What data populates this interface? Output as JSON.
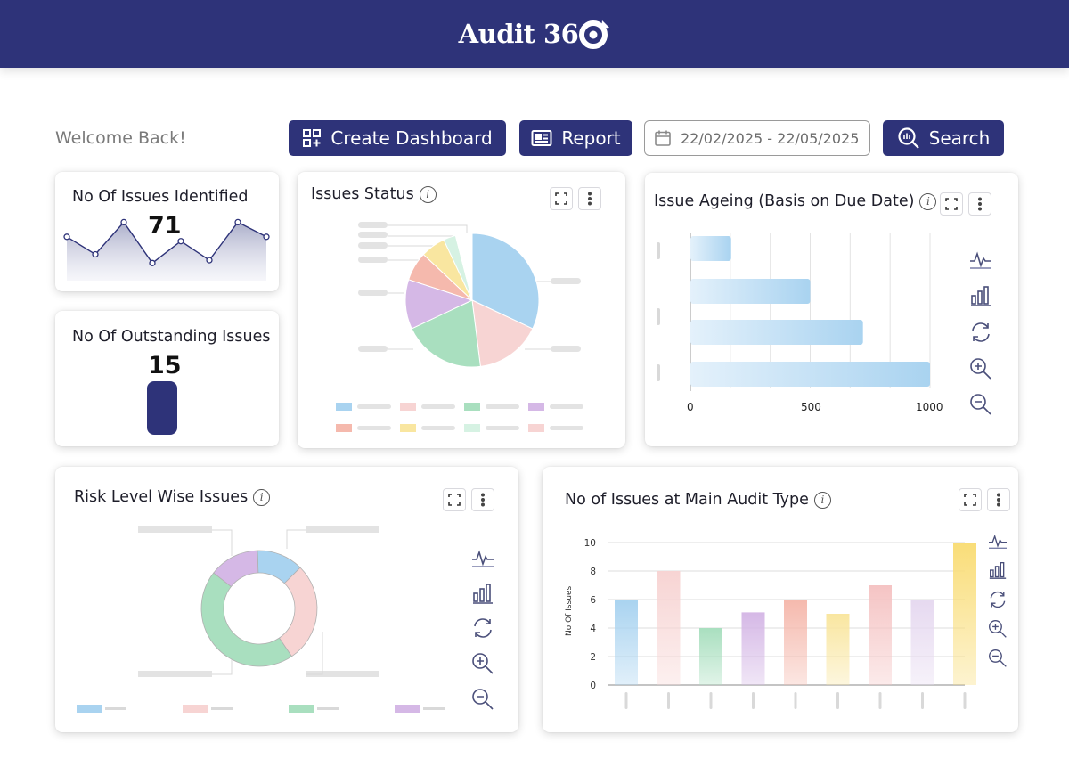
{
  "app": {
    "logo_text": "Audit 36",
    "colors": {
      "brand": "#2e3379",
      "background": "#ffffff"
    }
  },
  "header": {
    "welcome": "Welcome Back!",
    "create_dashboard_label": "Create Dashboard",
    "report_label": "Report",
    "date_range": "22/02/2025 - 22/05/2025",
    "search_label": "Search"
  },
  "cards": {
    "issues_identified": {
      "title": "No Of Issues Identified",
      "value": "71"
    },
    "outstanding_issues": {
      "title": "No Of Outstanding Issues",
      "value": "15"
    },
    "issues_status": {
      "title": "Issues Status"
    },
    "issue_ageing": {
      "title": "Issue Ageing (Basis on Due Date)"
    },
    "risk_level": {
      "title": "Risk Level Wise Issues"
    },
    "main_audit_type": {
      "title": "No of Issues at Main Audit Type"
    }
  },
  "chart_data": [
    {
      "type": "area",
      "title": "No Of Issues Identified",
      "values": [
        3,
        1.8,
        4,
        1.2,
        2.7,
        1.4,
        4,
        3
      ],
      "ylim": [
        0,
        5
      ]
    },
    {
      "type": "pie",
      "title": "Issues Status",
      "slices": [
        {
          "value": 32,
          "color": "#a9d3f0"
        },
        {
          "value": 16,
          "color": "#f7d4d3"
        },
        {
          "value": 20,
          "color": "#a9dfbf"
        },
        {
          "value": 12,
          "color": "#d5b8e6"
        },
        {
          "value": 7,
          "color": "#f5b9ad"
        },
        {
          "value": 6,
          "color": "#f9e6a0"
        },
        {
          "value": 3,
          "color": "#d6f2e3"
        },
        {
          "value": 4,
          "color": "#ffffff"
        }
      ]
    },
    {
      "type": "bar",
      "orientation": "horizontal",
      "title": "Issue Ageing (Basis on Due Date)",
      "values": [
        1000,
        720,
        500,
        170
      ],
      "xlim": [
        0,
        1000
      ],
      "xticks": [
        "0",
        "500",
        "1000"
      ],
      "color": "#a9d3f0"
    },
    {
      "type": "pie",
      "style": "donut",
      "title": "Risk Level Wise Issues",
      "slices": [
        {
          "value": 13,
          "color": "#a9d3f0"
        },
        {
          "value": 28,
          "color": "#f7d4d3"
        },
        {
          "value": 45,
          "color": "#a9dfbf"
        },
        {
          "value": 14,
          "color": "#d5b8e6"
        }
      ],
      "legend_colors": [
        "#a9d3f0",
        "#f7d4d3",
        "#a9dfbf",
        "#d5b8e6"
      ]
    },
    {
      "type": "bar",
      "title": "No of Issues at Main Audit Type",
      "ylabel": "No Of Issues",
      "ylim": [
        0,
        10
      ],
      "yticks": [
        "0",
        "2",
        "4",
        "6",
        "8",
        "10"
      ],
      "values": [
        6,
        8,
        4,
        5.1,
        6,
        5,
        7,
        6,
        10
      ],
      "colors": [
        "#a9d3f0",
        "#f7d4d3",
        "#a9dfbf",
        "#d5b8e6",
        "#f5b9ad",
        "#f9e6a0",
        "#f5c4c4",
        "#e6d9f0",
        "#f9dd78"
      ]
    }
  ],
  "outstanding_bar": {
    "fill_ratio": 1.0,
    "color": "#2e3379"
  }
}
